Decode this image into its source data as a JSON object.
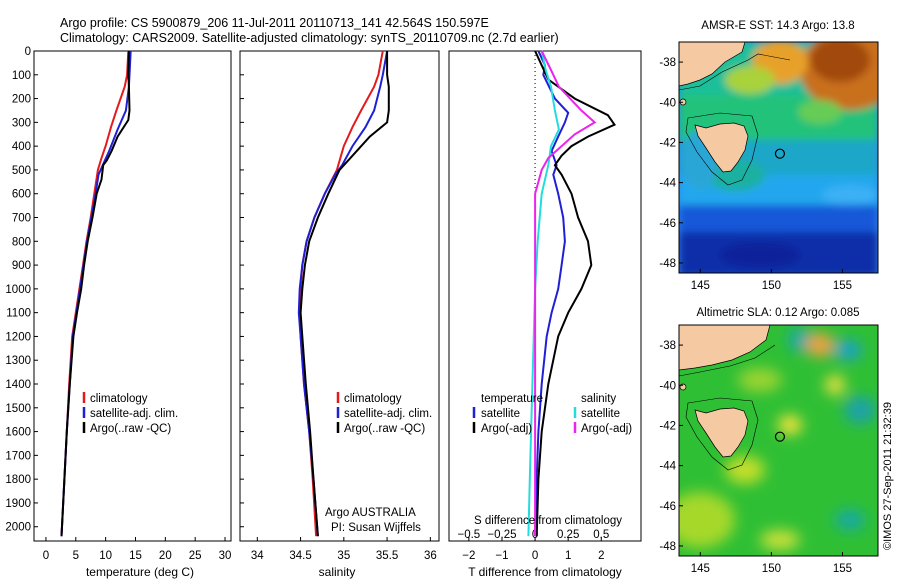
{
  "header": {
    "line1": "Argo profile: CS 5900879_206 11-Jul-2011 20110713_141 42.564S 150.597E",
    "line2": "Climatology: CARS2009. Satellite-adjusted climatology: synTS_20110709.nc (2.7d earlier)"
  },
  "credit": "©IMOS 27-Sep-2011 21:32:39",
  "colors": {
    "climatology": "#e41a1c",
    "satellite": "#1f1fd6",
    "argo": "#000000",
    "sal_satellite": "#22dddd",
    "sal_argo": "#ee22ee"
  },
  "chart_data": [
    {
      "type": "line",
      "id": "temperature",
      "xlabel": "temperature (deg C)",
      "ylabel": "",
      "xlim": [
        -2,
        31
      ],
      "ylim": [
        2060,
        0
      ],
      "xticks": [
        0,
        5,
        10,
        15,
        20,
        25,
        30
      ],
      "yticks": [
        0,
        100,
        200,
        300,
        400,
        500,
        600,
        700,
        800,
        900,
        1000,
        1100,
        1200,
        1300,
        1400,
        1500,
        1600,
        1700,
        1800,
        1900,
        2000
      ],
      "legend": [
        "climatology",
        "satellite-adj. clim.",
        "Argo(..raw -QC)"
      ],
      "series": [
        {
          "name": "climatology",
          "points": [
            [
              13.8,
              0
            ],
            [
              13.6,
              100
            ],
            [
              13.2,
              150
            ],
            [
              11.8,
              250
            ],
            [
              10.9,
              320
            ],
            [
              10.0,
              400
            ],
            [
              9.3,
              450
            ],
            [
              8.7,
              500
            ],
            [
              8.1,
              600
            ],
            [
              7.5,
              700
            ],
            [
              6.8,
              800
            ],
            [
              6.2,
              900
            ],
            [
              5.6,
              1000
            ],
            [
              5.0,
              1100
            ],
            [
              4.4,
              1200
            ],
            [
              3.9,
              1400
            ],
            [
              3.5,
              1600
            ],
            [
              3.1,
              1800
            ],
            [
              2.6,
              2040
            ]
          ]
        },
        {
          "name": "satellite-adj. clim.",
          "points": [
            [
              14.2,
              0
            ],
            [
              14.0,
              100
            ],
            [
              13.9,
              150
            ],
            [
              13.4,
              250
            ],
            [
              12.0,
              330
            ],
            [
              10.6,
              420
            ],
            [
              9.7,
              470
            ],
            [
              8.8,
              520
            ],
            [
              8.2,
              620
            ],
            [
              7.6,
              700
            ],
            [
              6.9,
              800
            ],
            [
              6.3,
              900
            ],
            [
              5.7,
              1000
            ],
            [
              5.1,
              1100
            ],
            [
              4.5,
              1200
            ],
            [
              4.0,
              1400
            ],
            [
              3.5,
              1600
            ],
            [
              3.1,
              1800
            ],
            [
              2.6,
              2040
            ]
          ]
        },
        {
          "name": "Argo(..raw -QC)",
          "points": [
            [
              13.9,
              0
            ],
            [
              13.8,
              100
            ],
            [
              13.9,
              150
            ],
            [
              14.0,
              250
            ],
            [
              13.8,
              290
            ],
            [
              12.0,
              360
            ],
            [
              11.0,
              420
            ],
            [
              10.2,
              460
            ],
            [
              9.6,
              480
            ],
            [
              9.3,
              540
            ],
            [
              8.5,
              600
            ],
            [
              7.8,
              700
            ],
            [
              7.0,
              800
            ],
            [
              6.4,
              900
            ],
            [
              5.9,
              1000
            ],
            [
              5.2,
              1100
            ],
            [
              4.6,
              1200
            ],
            [
              4.0,
              1400
            ],
            [
              3.5,
              1600
            ],
            [
              3.1,
              1800
            ],
            [
              2.6,
              2040
            ]
          ]
        }
      ]
    },
    {
      "type": "line",
      "id": "salinity",
      "xlabel": "salinity",
      "ylabel": "",
      "xlim": [
        33.8,
        36.1
      ],
      "ylim": [
        2060,
        0
      ],
      "xticks": [
        34,
        34.5,
        35,
        35.5,
        36
      ],
      "legend": [
        "climatology",
        "satellite-adj. clim.",
        "Argo(..raw -QC)"
      ],
      "annotation": [
        "Argo AUSTRALIA",
        "PI: Susan Wijffels"
      ],
      "series": [
        {
          "name": "climatology",
          "points": [
            [
              35.45,
              0
            ],
            [
              35.4,
              100
            ],
            [
              35.35,
              150
            ],
            [
              35.2,
              250
            ],
            [
              35.1,
              320
            ],
            [
              35.0,
              400
            ],
            [
              34.92,
              500
            ],
            [
              34.78,
              600
            ],
            [
              34.66,
              700
            ],
            [
              34.57,
              800
            ],
            [
              34.52,
              900
            ],
            [
              34.5,
              1000
            ],
            [
              34.49,
              1100
            ],
            [
              34.5,
              1200
            ],
            [
              34.54,
              1400
            ],
            [
              34.6,
              1600
            ],
            [
              34.64,
              1800
            ],
            [
              34.68,
              2040
            ]
          ]
        },
        {
          "name": "satellite-adj. clim.",
          "points": [
            [
              35.5,
              0
            ],
            [
              35.45,
              100
            ],
            [
              35.42,
              150
            ],
            [
              35.35,
              250
            ],
            [
              35.25,
              320
            ],
            [
              35.1,
              400
            ],
            [
              34.98,
              480
            ],
            [
              34.9,
              520
            ],
            [
              34.78,
              600
            ],
            [
              34.66,
              700
            ],
            [
              34.57,
              800
            ],
            [
              34.52,
              900
            ],
            [
              34.49,
              1000
            ],
            [
              34.48,
              1100
            ],
            [
              34.5,
              1200
            ],
            [
              34.54,
              1400
            ],
            [
              34.6,
              1600
            ],
            [
              34.65,
              1800
            ],
            [
              34.7,
              2040
            ]
          ]
        },
        {
          "name": "Argo(..raw -QC)",
          "points": [
            [
              35.5,
              0
            ],
            [
              35.5,
              100
            ],
            [
              35.52,
              150
            ],
            [
              35.52,
              250
            ],
            [
              35.5,
              300
            ],
            [
              35.3,
              360
            ],
            [
              35.15,
              420
            ],
            [
              35.05,
              460
            ],
            [
              34.95,
              500
            ],
            [
              34.82,
              600
            ],
            [
              34.7,
              700
            ],
            [
              34.6,
              800
            ],
            [
              34.55,
              900
            ],
            [
              34.52,
              1000
            ],
            [
              34.5,
              1100
            ],
            [
              34.52,
              1200
            ],
            [
              34.56,
              1400
            ],
            [
              34.61,
              1600
            ],
            [
              34.65,
              1800
            ],
            [
              34.7,
              2040
            ]
          ]
        }
      ]
    },
    {
      "type": "line",
      "id": "difference",
      "xlabel": "T difference from climatology",
      "xlabel_top": "S difference from climatology",
      "xlim": [
        -2.6,
        3.2
      ],
      "ylim": [
        2060,
        0
      ],
      "xticks": [
        -2,
        -1,
        0,
        1,
        2
      ],
      "xtick_labels": [
        "−2",
        "−1",
        "0",
        "1",
        "2"
      ],
      "sticks": [
        -0.5,
        -0.25,
        0,
        0.25,
        0.5
      ],
      "stick_labels": [
        "−0.5",
        "−0.25",
        "0",
        "0.25",
        "0.5"
      ],
      "s_scale": 4,
      "legend_headers": [
        "temperature",
        "salinity"
      ],
      "legend": [
        "satellite",
        "Argo(-adj)",
        "satellite",
        "Argo(-adj)"
      ],
      "series": [
        {
          "name": "satellite",
          "kind": "T",
          "points": [
            [
              0.1,
              0
            ],
            [
              0.3,
              60
            ],
            [
              0.25,
              100
            ],
            [
              0.6,
              200
            ],
            [
              1.0,
              260
            ],
            [
              0.9,
              300
            ],
            [
              0.7,
              360
            ],
            [
              0.5,
              420
            ],
            [
              0.65,
              480
            ],
            [
              0.55,
              520
            ],
            [
              0.7,
              600
            ],
            [
              0.85,
              700
            ],
            [
              0.9,
              800
            ],
            [
              0.8,
              900
            ],
            [
              0.7,
              1000
            ],
            [
              0.5,
              1100
            ],
            [
              0.35,
              1200
            ],
            [
              0.2,
              1400
            ],
            [
              0.1,
              1600
            ],
            [
              0.05,
              1800
            ],
            [
              0.0,
              2040
            ]
          ]
        },
        {
          "name": "Argo(-adj)",
          "kind": "T",
          "points": [
            [
              0.0,
              0
            ],
            [
              0.2,
              60
            ],
            [
              0.4,
              120
            ],
            [
              1.2,
              200
            ],
            [
              2.2,
              270
            ],
            [
              2.4,
              310
            ],
            [
              1.6,
              360
            ],
            [
              1.1,
              400
            ],
            [
              0.8,
              440
            ],
            [
              0.6,
              480
            ],
            [
              0.8,
              520
            ],
            [
              1.1,
              600
            ],
            [
              1.3,
              700
            ],
            [
              1.6,
              800
            ],
            [
              1.7,
              900
            ],
            [
              1.4,
              1000
            ],
            [
              1.0,
              1100
            ],
            [
              0.7,
              1200
            ],
            [
              0.4,
              1400
            ],
            [
              0.2,
              1600
            ],
            [
              0.1,
              1800
            ],
            [
              0.05,
              2040
            ]
          ]
        },
        {
          "name": "satellite",
          "kind": "S",
          "points": [
            [
              0.05,
              0
            ],
            [
              0.08,
              80
            ],
            [
              0.12,
              150
            ],
            [
              0.15,
              250
            ],
            [
              0.18,
              330
            ],
            [
              0.12,
              400
            ],
            [
              0.1,
              480
            ],
            [
              0.05,
              600
            ],
            [
              0.02,
              800
            ],
            [
              0.0,
              1000
            ],
            [
              -0.02,
              1400
            ],
            [
              -0.04,
              1800
            ],
            [
              -0.05,
              2040
            ]
          ]
        },
        {
          "name": "Argo(-adj)",
          "kind": "S",
          "points": [
            [
              0.05,
              0
            ],
            [
              0.12,
              80
            ],
            [
              0.18,
              150
            ],
            [
              0.35,
              250
            ],
            [
              0.45,
              300
            ],
            [
              0.3,
              350
            ],
            [
              0.2,
              400
            ],
            [
              0.1,
              450
            ],
            [
              0.05,
              500
            ],
            [
              0.0,
              600
            ],
            [
              0.0,
              800
            ],
            [
              0.0,
              1000
            ],
            [
              0.0,
              1400
            ],
            [
              0.0,
              1800
            ],
            [
              0.0,
              2040
            ]
          ]
        }
      ]
    },
    {
      "type": "heatmap",
      "id": "sst_map",
      "title": "AMSR-E SST: 14.3 Argo: 13.8",
      "xlim": [
        143.5,
        157.5
      ],
      "ylim": [
        -48.5,
        -37
      ],
      "xticks": [
        145,
        150,
        155
      ],
      "yticks": [
        -38,
        -40,
        -42,
        -44,
        -46,
        -48
      ],
      "marker": [
        150.6,
        -42.56
      ]
    },
    {
      "type": "heatmap",
      "id": "sla_map",
      "title": "Altimetric SLA: 0.12 Argo: 0.085",
      "xlim": [
        143.5,
        157.5
      ],
      "ylim": [
        -48.5,
        -37
      ],
      "xticks": [
        145,
        150,
        155
      ],
      "yticks": [
        -38,
        -40,
        -42,
        -44,
        -46,
        -48
      ],
      "marker": [
        150.6,
        -42.56
      ]
    }
  ]
}
